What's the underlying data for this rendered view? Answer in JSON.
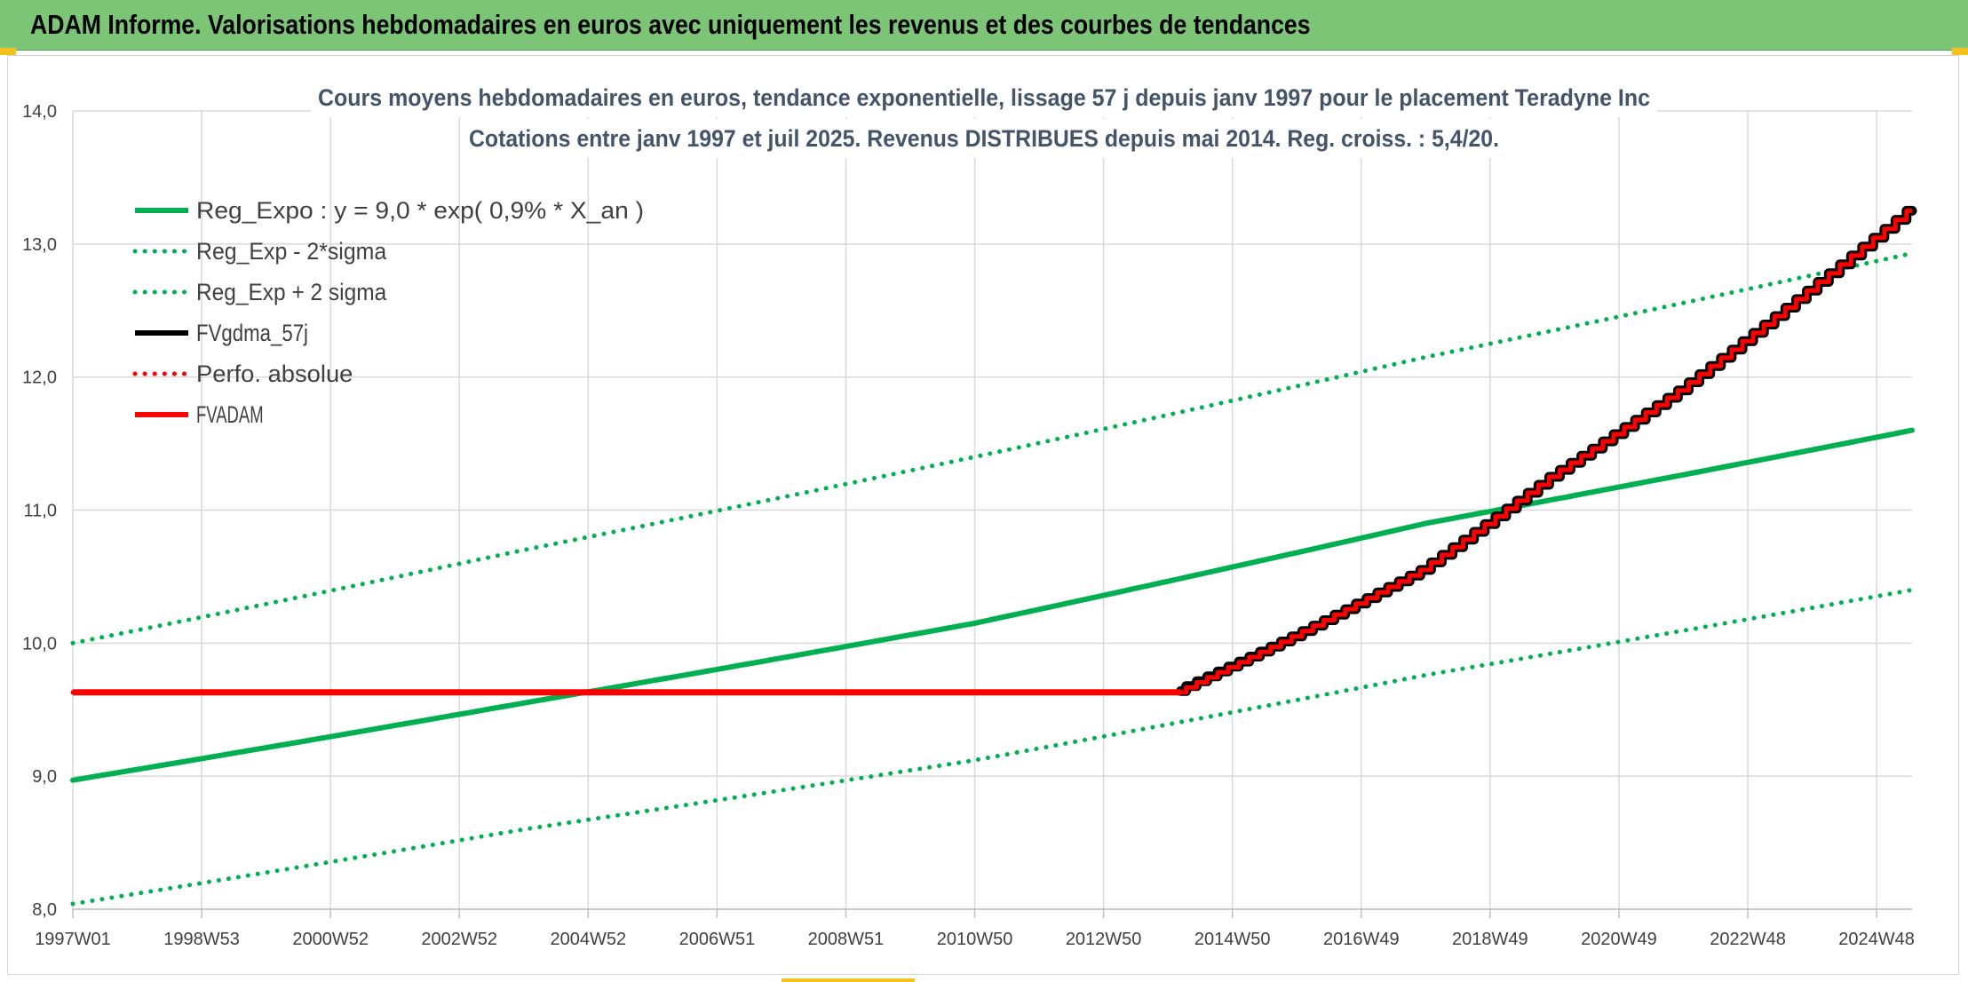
{
  "header": {
    "title": "ADAM Informe. Valorisations hebdomadaires en euros avec uniquement les revenus et des courbes de tendances"
  },
  "colors": {
    "band": "#7cc576",
    "green": "#00b050",
    "red": "#ff0000",
    "black": "#000000",
    "grid": "#d9d9d9",
    "accent": "#f4c21f"
  },
  "chart_data": {
    "type": "line",
    "title_lines": [
      "Cours moyens hebdomadaires en euros, tendance exponentielle, lissage 57 j depuis janv 1997 pour le placement Teradyne Inc",
      "Cotations entre janv 1997 et juil 2025. Revenus DISTRIBUES depuis mai 2014. Reg. croiss. : 5,4/20."
    ],
    "x_start_year": 1997,
    "x_end_year": 2025.55,
    "x_ticks": [
      {
        "label": "1997W01",
        "x": 1997.0
      },
      {
        "label": "1998W53",
        "x": 1999.0
      },
      {
        "label": "2000W52",
        "x": 2001.0
      },
      {
        "label": "2002W52",
        "x": 2003.0
      },
      {
        "label": "2004W52",
        "x": 2005.0
      },
      {
        "label": "2006W51",
        "x": 2007.0
      },
      {
        "label": "2008W51",
        "x": 2009.0
      },
      {
        "label": "2010W50",
        "x": 2011.0
      },
      {
        "label": "2012W50",
        "x": 2013.0
      },
      {
        "label": "2014W50",
        "x": 2015.0
      },
      {
        "label": "2016W49",
        "x": 2017.0
      },
      {
        "label": "2018W49",
        "x": 2019.0
      },
      {
        "label": "2020W49",
        "x": 2021.0
      },
      {
        "label": "2022W48",
        "x": 2023.0
      },
      {
        "label": "2024W48",
        "x": 2025.0
      }
    ],
    "ylim": [
      8.0,
      14.0
    ],
    "y_ticks": [
      "8,0",
      "9,0",
      "10,0",
      "11,0",
      "12,0",
      "13,0",
      "14,0"
    ],
    "grid": true,
    "legend_position": "top-left",
    "series": [
      {
        "name": "Reg_Expo : y = 9,0 * exp( 0,9% *  X_an )",
        "style": "solid",
        "color": "#00b050",
        "points": [
          [
            1997.0,
            8.97
          ],
          [
            2004.0,
            9.55
          ],
          [
            2011.0,
            10.15
          ],
          [
            2018.0,
            10.9
          ],
          [
            2025.55,
            11.6
          ]
        ]
      },
      {
        "name": "Reg_Exp - 2*sigma",
        "style": "dotted",
        "color": "#00b050",
        "points": [
          [
            1997.0,
            8.04
          ],
          [
            2004.0,
            8.6
          ],
          [
            2011.0,
            9.12
          ],
          [
            2018.0,
            9.76
          ],
          [
            2025.55,
            10.4
          ]
        ]
      },
      {
        "name": "Reg_Exp + 2 sigma",
        "style": "dotted",
        "color": "#00b050",
        "points": [
          [
            1997.0,
            10.0
          ],
          [
            2004.0,
            10.7
          ],
          [
            2011.0,
            11.4
          ],
          [
            2018.0,
            12.15
          ],
          [
            2025.55,
            12.93
          ]
        ]
      },
      {
        "name": "FVgdma_57j",
        "style": "solid",
        "color": "#000000",
        "points": [
          [
            2014.2,
            9.64
          ],
          [
            2016.0,
            10.05
          ],
          [
            2018.0,
            10.55
          ],
          [
            2020.0,
            11.25
          ],
          [
            2022.0,
            11.9
          ],
          [
            2024.0,
            12.65
          ],
          [
            2025.55,
            13.25
          ]
        ]
      },
      {
        "name": "Perfo. absolue",
        "style": "dotted",
        "color": "#ff0000",
        "points": [
          [
            1997.0,
            9.63
          ],
          [
            2014.2,
            9.63
          ],
          [
            2016.0,
            10.05
          ],
          [
            2018.0,
            10.55
          ],
          [
            2020.0,
            11.25
          ],
          [
            2022.0,
            11.9
          ],
          [
            2024.0,
            12.65
          ],
          [
            2025.55,
            13.25
          ]
        ]
      },
      {
        "name": "FVADAM",
        "style": "solid",
        "color": "#ff0000",
        "points": [
          [
            1997.0,
            9.63
          ],
          [
            2014.2,
            9.63
          ],
          [
            2016.0,
            10.05
          ],
          [
            2018.0,
            10.55
          ],
          [
            2020.0,
            11.25
          ],
          [
            2022.0,
            11.9
          ],
          [
            2024.0,
            12.65
          ],
          [
            2025.55,
            13.25
          ]
        ]
      }
    ]
  }
}
